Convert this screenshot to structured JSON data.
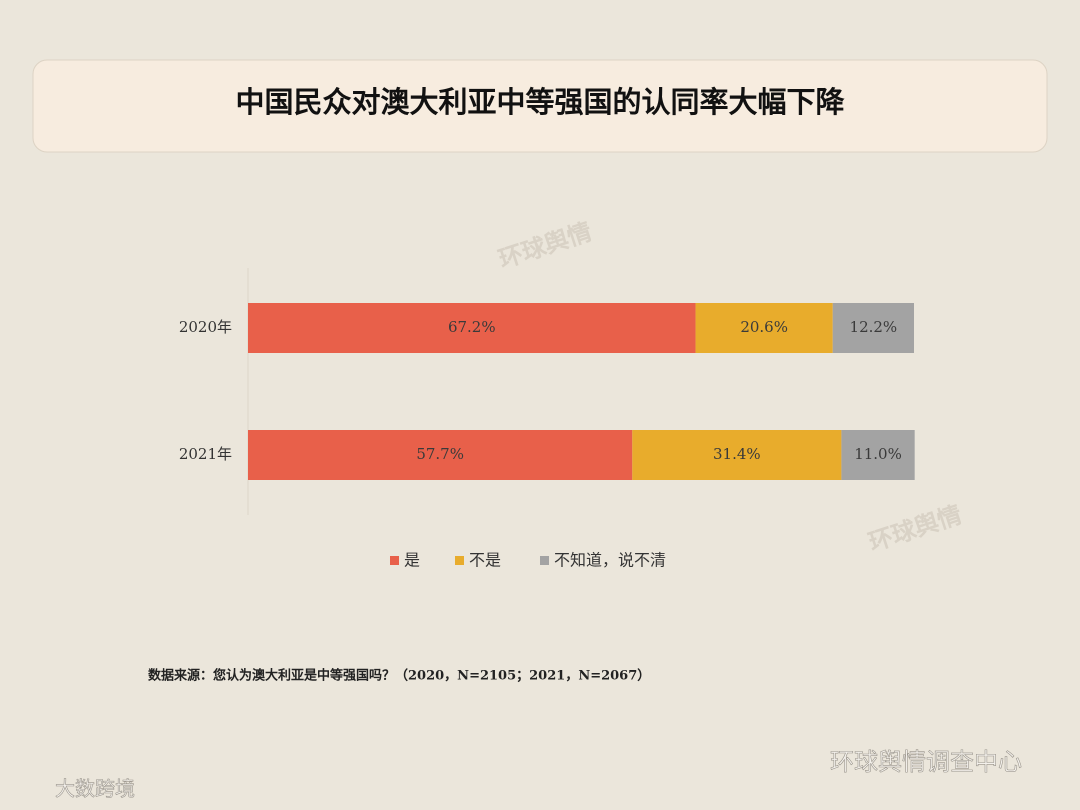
{
  "chart_data": {
    "type": "stacked-bar-horizontal",
    "title": "中国民众对澳大利亚中等强国的认同率大幅下降",
    "categories": [
      "2020年",
      "2021年"
    ],
    "series": [
      {
        "name": "是",
        "color": "#e8604a",
        "values": [
          67.2,
          57.7
        ],
        "value_labels": [
          "67.2%",
          "57.7%"
        ]
      },
      {
        "name": "不是",
        "color": "#e8ac2c",
        "values": [
          20.6,
          31.4
        ],
        "value_labels": [
          "20.6%",
          "31.4%"
        ]
      },
      {
        "name": "不知道，说不清",
        "color": "#a3a3a3",
        "values": [
          12.2,
          11.0
        ],
        "value_labels": [
          "12.2%",
          "11.0%"
        ]
      }
    ],
    "xlim": [
      0,
      100
    ],
    "legend": "bottom",
    "source": "数据来源：您认为澳大利亚是中等强国吗？（2020，N=2105；2021，N=2067）"
  },
  "watermark": "环球舆情",
  "footer_right": "环球舆情调查中心",
  "footer_left": "大数跨境"
}
